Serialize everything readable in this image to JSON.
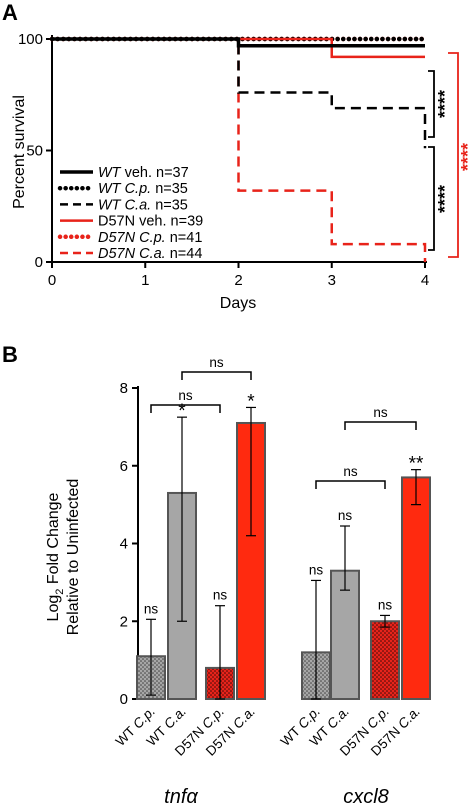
{
  "panelA": {
    "letter": "A",
    "xlabel": "Days",
    "ylabel": "Percent survival",
    "xticks": [
      "0",
      "1",
      "2",
      "3",
      "4"
    ],
    "yticks": [
      "0",
      "50",
      "100"
    ],
    "xlim": [
      0,
      4
    ],
    "ylim": [
      0,
      100
    ],
    "legend": [
      {
        "italic": "WT",
        "rest": " veh. n=37",
        "style": "solid-thick",
        "color": "#000000"
      },
      {
        "italic": "WT C.p.",
        "rest": " n=35",
        "style": "dotted",
        "color": "#000000"
      },
      {
        "italic": "WT C.a.",
        "rest": " n=35",
        "style": "dashed",
        "color": "#000000"
      },
      {
        "italic": "",
        "rest": "D57N veh. n=39",
        "style": "solid",
        "color": "#e8231a"
      },
      {
        "italic": "D57N C.p.",
        "rest": " n=41",
        "style": "dotted",
        "color": "#e8231a"
      },
      {
        "italic": "D57N C.a.",
        "rest": " n=44",
        "style": "dashed",
        "color": "#e8231a"
      }
    ],
    "significance": [
      {
        "label": "****",
        "color": "#000000"
      },
      {
        "label": "****",
        "color": "#000000"
      },
      {
        "label": "****",
        "color": "#e8231a"
      }
    ]
  },
  "panelB": {
    "letter": "B",
    "ylabel_main": "Log",
    "ylabel_sub": "2",
    "ylabel_rest": " Fold Change",
    "ylabel_line2": "Relative to Uninfected",
    "yticks": [
      "0",
      "2",
      "4",
      "6",
      "8"
    ],
    "ylim": [
      0,
      8
    ],
    "genes": [
      "tnfα",
      "cxcl8"
    ],
    "bar_labels": [
      "WT C.p.",
      "WT C.a.",
      "D57N C.p.",
      "D57N C.a."
    ],
    "bracket_label": "ns",
    "stats_labels": [
      "ns",
      "*",
      "ns",
      "*",
      "ns",
      "ns",
      "ns",
      "**"
    ]
  },
  "chart_data": [
    {
      "type": "line",
      "title": "",
      "xlabel": "Days",
      "ylabel": "Percent survival",
      "xlim": [
        0,
        4
      ],
      "ylim": [
        0,
        100
      ],
      "legend_position": "bottom-left",
      "series": [
        {
          "name": "WT veh. n=37",
          "color": "#000000",
          "style": "solid",
          "x": [
            0,
            2,
            2,
            4
          ],
          "y": [
            100,
            100,
            97,
            97
          ]
        },
        {
          "name": "WT C.p. n=35",
          "color": "#000000",
          "style": "dotted",
          "x": [
            0,
            4
          ],
          "y": [
            100,
            100
          ]
        },
        {
          "name": "WT C.a. n=35",
          "color": "#000000",
          "style": "dashed",
          "x": [
            0,
            2,
            2,
            3,
            3,
            4,
            4
          ],
          "y": [
            100,
            100,
            76,
            76,
            69,
            69,
            51
          ]
        },
        {
          "name": "D57N veh. n=39",
          "color": "#e8231a",
          "style": "solid",
          "x": [
            0,
            3,
            3,
            4
          ],
          "y": [
            100,
            100,
            92,
            92
          ]
        },
        {
          "name": "D57N C.p. n=41",
          "color": "#e8231a",
          "style": "dotted",
          "x": [
            0,
            4
          ],
          "y": [
            100,
            100
          ]
        },
        {
          "name": "D57N C.a. n=44",
          "color": "#e8231a",
          "style": "dashed",
          "x": [
            0,
            2,
            2,
            3,
            3,
            4,
            4
          ],
          "y": [
            100,
            100,
            32,
            32,
            8,
            8,
            0
          ]
        }
      ],
      "annotations": [
        "****",
        "****",
        "****"
      ]
    },
    {
      "type": "bar",
      "title": "",
      "xlabel": "",
      "ylabel": "Log2 Fold Change Relative to Uninfected",
      "ylim": [
        0,
        8
      ],
      "groups": [
        "tnfα",
        "cxcl8"
      ],
      "categories": [
        "WT C.p.",
        "WT C.a.",
        "D57N C.p.",
        "D57N C.a."
      ],
      "series": [
        {
          "group": "tnfα",
          "values": [
            1.1,
            5.3,
            0.8,
            7.1
          ],
          "err_low": [
            0.1,
            2.0,
            0.0,
            4.2
          ],
          "err_high": [
            2.05,
            7.25,
            2.4,
            7.5
          ],
          "labels": [
            "ns",
            "*",
            "ns",
            "*"
          ]
        },
        {
          "group": "cxcl8",
          "values": [
            1.2,
            3.3,
            2.0,
            5.7
          ],
          "err_low": [
            0.0,
            2.8,
            1.85,
            5.0
          ],
          "err_high": [
            3.05,
            4.45,
            2.15,
            5.9
          ],
          "labels": [
            "ns",
            "ns",
            "ns",
            "**"
          ]
        }
      ],
      "brackets": [
        {
          "group": "tnfα",
          "from": "WT C.p.",
          "to": "D57N C.p.",
          "label": "ns"
        },
        {
          "group": "tnfα",
          "from": "WT C.a.",
          "to": "D57N C.a.",
          "label": "ns"
        },
        {
          "group": "cxcl8",
          "from": "WT C.p.",
          "to": "D57N C.p.",
          "label": "ns"
        },
        {
          "group": "cxcl8",
          "from": "WT C.a.",
          "to": "D57N C.a.",
          "label": "ns"
        }
      ],
      "fills": {
        "WT C.p.": "#a6a6a6",
        "WT C.a.": "#a6a6a6",
        "D57N C.p.": "#e8231a",
        "D57N C.a.": "#ff2a0f"
      }
    }
  ]
}
